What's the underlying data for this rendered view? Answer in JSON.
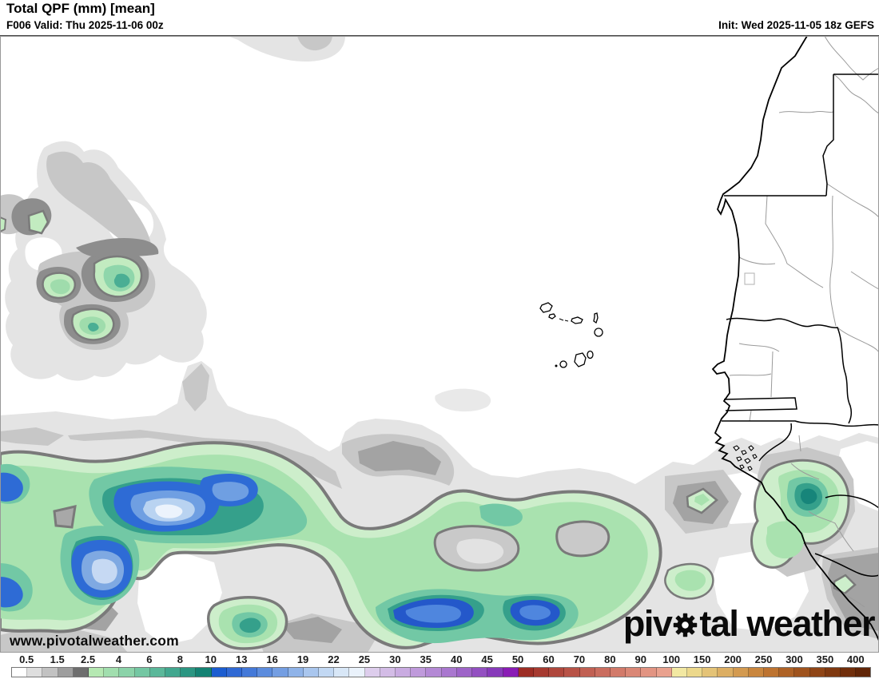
{
  "header": {
    "title": "Total QPF (mm) [mean]",
    "valid": "F006 Valid: Thu 2025-11-06 00z",
    "init": "Init: Wed 2025-11-05 18z GEFS"
  },
  "watermark": "www.pivotalweather.com",
  "logo": {
    "pre": "piv",
    "post": "tal weather"
  },
  "colorbar": {
    "labels": [
      "0.5",
      "1.5",
      "2.5",
      "4",
      "6",
      "8",
      "10",
      "13",
      "16",
      "19",
      "22",
      "25",
      "30",
      "35",
      "40",
      "45",
      "50",
      "60",
      "70",
      "80",
      "90",
      "100",
      "150",
      "200",
      "250",
      "300",
      "350",
      "400"
    ],
    "cell_colors": [
      "#ffffff",
      "#dedede",
      "#c2c2c2",
      "#9e9e9e",
      "#6e6e6e",
      "#b5e8b2",
      "#a1deae",
      "#8bd3a9",
      "#74c7a3",
      "#5bb89a",
      "#42a78f",
      "#2b9682",
      "#148273",
      "#1c5dd0",
      "#3069d4",
      "#4479d8",
      "#5c8cdd",
      "#749ee2",
      "#8fb3e8",
      "#a9c6ee",
      "#c2d8f3",
      "#d8e7f7",
      "#eaf2fb",
      "#ddcdec",
      "#d3bce6",
      "#c9abe1",
      "#bf9adb",
      "#b489d5",
      "#a977cf",
      "#9e64c8",
      "#9350c1",
      "#873aba",
      "#8a1cb5",
      "#9d2d24",
      "#a63a30",
      "#af473c",
      "#b85347",
      "#c16053",
      "#ca6d5f",
      "#d27a6a",
      "#da8776",
      "#e29482",
      "#e9a18e",
      "#f2e8a2",
      "#ecd88b",
      "#e4c377",
      "#dcae63",
      "#d39a50",
      "#c9863e",
      "#bd7330",
      "#ae6226",
      "#9f531d",
      "#8f4516",
      "#7f3910",
      "#702e0b",
      "#612507"
    ]
  },
  "map_palette": {
    "light_gray": "#e4e4e4",
    "medium_gray": "#c7c7c7",
    "dark_gray": "#a3a3a3",
    "contour_gray": "#7a7a7a",
    "pale_green": "#cdeecb",
    "green": "#a9e2af",
    "teal": "#72c8a5",
    "deep_teal": "#35a08b",
    "blue": "#2e6bd5",
    "light_blue": "#b9d3f1",
    "pale_blue_core": "#ecf3fc"
  }
}
